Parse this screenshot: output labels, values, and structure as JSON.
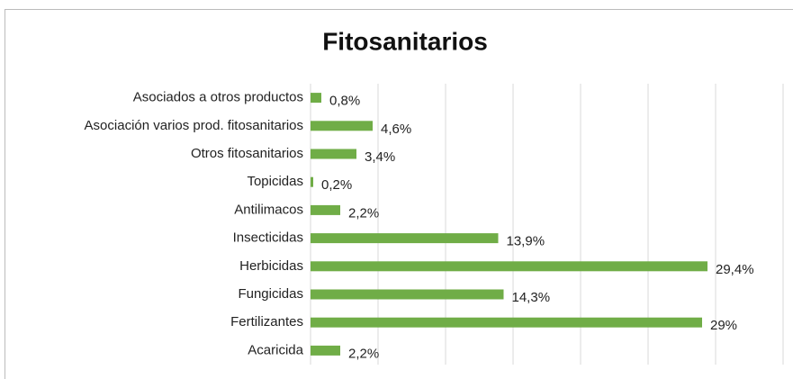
{
  "chart_data": {
    "type": "bar",
    "orientation": "horizontal",
    "title": "Fitosanitarios",
    "categories": [
      "Asociados a otros productos",
      "Asociación varios prod. fitosanitarios",
      "Otros fitosanitarios",
      "Topicidas",
      "Antilimacos",
      "Insecticidas",
      "Herbicidas",
      "Fungicidas",
      "Fertilizantes",
      "Acaricida"
    ],
    "values": [
      0.8,
      4.6,
      3.4,
      0.2,
      2.2,
      13.9,
      29.4,
      14.3,
      29,
      2.2
    ],
    "value_labels": [
      "0,8%",
      "4,6%",
      "3,4%",
      "0,2%",
      "2,2%",
      "13,9%",
      "29,4%",
      "14,3%",
      "29%",
      "2,2%"
    ],
    "color": "#70ad47",
    "xlim": [
      0,
      35
    ],
    "xticks": [
      0,
      5,
      10,
      15,
      20,
      25,
      30,
      35
    ],
    "grid": true
  }
}
